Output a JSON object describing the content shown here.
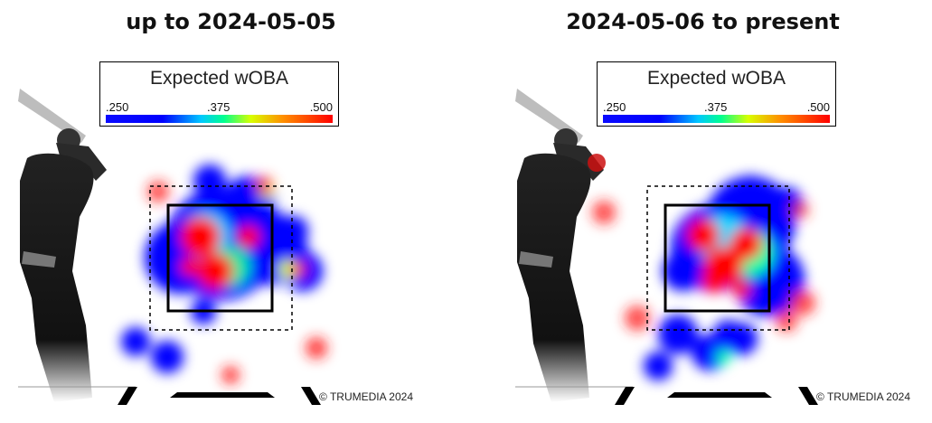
{
  "chart_data": [
    {
      "type": "heatmap",
      "title": "up to 2024-05-05",
      "legend": {
        "title": "Expected wOBA",
        "ticks": [
          ".250",
          ".375",
          ".500"
        ]
      },
      "colorscale": [
        "#0000ff",
        "#00c8ff",
        "#00ff90",
        "#d8ff00",
        "#ff9000",
        "#ff0000"
      ],
      "copyright": "© TRUMEDIA 2024"
    },
    {
      "type": "heatmap",
      "title": "2024-05-06 to present",
      "legend": {
        "title": "Expected wOBA",
        "ticks": [
          ".250",
          ".375",
          ".500"
        ]
      },
      "colorscale": [
        "#0000ff",
        "#00c8ff",
        "#00ff90",
        "#d8ff00",
        "#ff9000",
        "#ff0000"
      ],
      "copyright": "© TRUMEDIA 2024"
    }
  ]
}
